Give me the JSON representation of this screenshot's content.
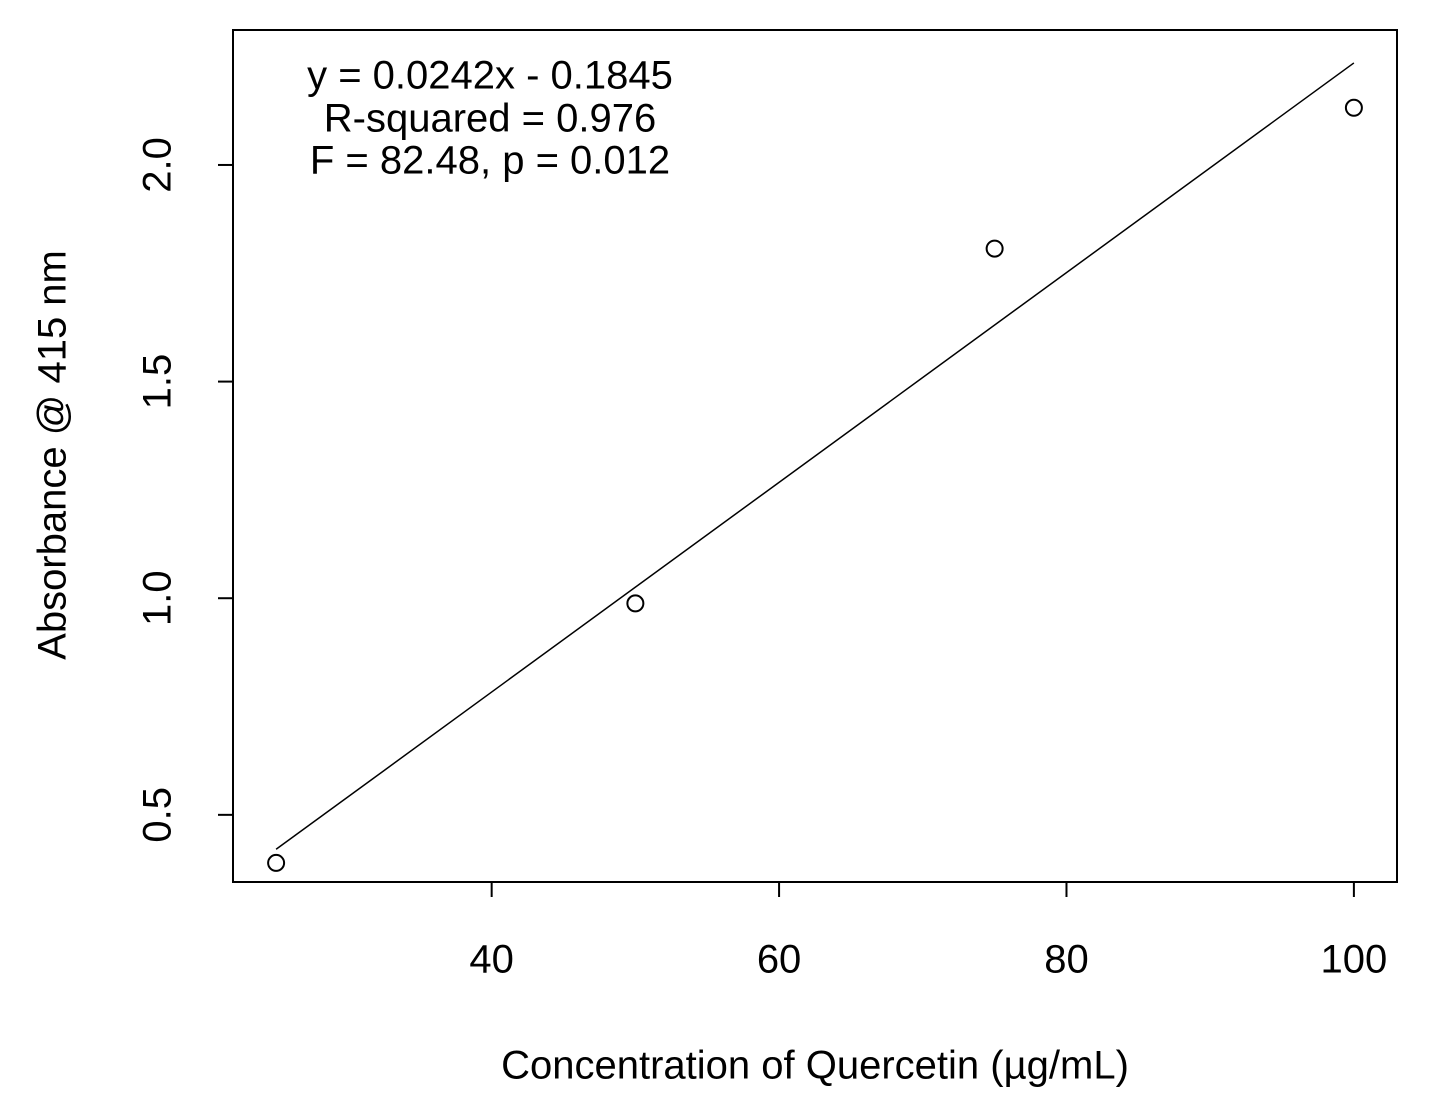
{
  "chart_data": {
    "type": "scatter",
    "x_label": "Concentration of Quercetin (µg/mL)",
    "y_label": "Absorbance @ 415 nm",
    "annotations": [
      "y = 0.0242x - 0.1845",
      "R-squared = 0.976",
      "F = 82.48, p = 0.012"
    ],
    "x": [
      25,
      50,
      75,
      100
    ],
    "values": [
      0.389,
      0.988,
      1.807,
      2.132
    ],
    "color": "#000000",
    "regression": {
      "x": [
        25,
        100
      ],
      "y": [
        0.4205,
        2.2355
      ]
    },
    "xlim": [
      22,
      103
    ],
    "ylim": [
      0.345,
      2.3115
    ],
    "xticks": [
      40,
      60,
      80,
      100
    ],
    "yticks": [
      0.5,
      {
        "value": 1.0,
        "label": "1.0"
      },
      1.5,
      {
        "value": 2.0,
        "label": "2.0"
      }
    ],
    "grid": false
  }
}
